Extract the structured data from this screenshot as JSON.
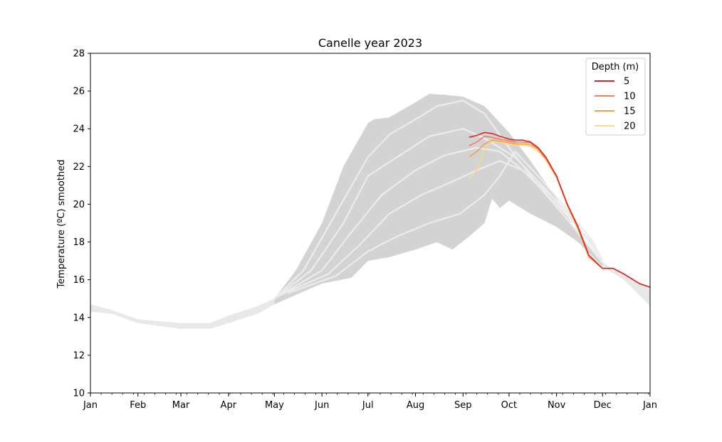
{
  "chart_data": {
    "type": "line",
    "title": "Canelle year 2023",
    "xlabel": "",
    "ylabel": "Temperature (ºC) smoothed",
    "ylim": [
      10,
      28
    ],
    "yticks": [
      10,
      12,
      14,
      16,
      18,
      20,
      22,
      24,
      26,
      28
    ],
    "xlim": [
      "2023-01-01",
      "2024-01-01"
    ],
    "xtick_labels": [
      "Jan",
      "Feb",
      "Mar",
      "Apr",
      "May",
      "Jun",
      "Jul",
      "Aug",
      "Sep",
      "Oct",
      "Nov",
      "Dec",
      "Jan"
    ],
    "xtick_dates": [
      "2023-01-01",
      "2023-02-01",
      "2023-03-01",
      "2023-04-01",
      "2023-05-01",
      "2023-06-01",
      "2023-07-01",
      "2023-08-01",
      "2023-09-01",
      "2023-10-01",
      "2023-11-01",
      "2023-12-01",
      "2024-01-01"
    ],
    "legend": {
      "title": "Depth (m)",
      "placement": "top-right"
    },
    "colors": {
      "band_outer": "#e8e8e8",
      "band_inner": "#d3d3d3",
      "historical_line": "#ececec"
    },
    "background_band": {
      "description_outer": "historical min/max envelope",
      "outer_upper": [
        [
          "2023-01-01",
          14.7
        ],
        [
          "2023-01-15",
          14.4
        ],
        [
          "2023-02-01",
          13.9
        ],
        [
          "2023-03-01",
          13.7
        ],
        [
          "2023-03-20",
          13.7
        ],
        [
          "2023-04-01",
          14.1
        ],
        [
          "2023-04-20",
          14.6
        ],
        [
          "2023-05-01",
          15.0
        ],
        [
          "2023-05-15",
          16.5
        ],
        [
          "2023-06-01",
          19.0
        ],
        [
          "2023-06-15",
          22.0
        ],
        [
          "2023-07-01",
          24.3
        ],
        [
          "2023-07-05",
          24.5
        ],
        [
          "2023-07-15",
          24.6
        ],
        [
          "2023-08-01",
          25.4
        ],
        [
          "2023-08-10",
          25.85
        ],
        [
          "2023-08-20",
          25.8
        ],
        [
          "2023-09-01",
          25.7
        ],
        [
          "2023-09-15",
          25.2
        ],
        [
          "2023-10-01",
          23.8
        ],
        [
          "2023-10-15",
          22.3
        ],
        [
          "2023-11-01",
          20.3
        ],
        [
          "2023-11-15",
          18.4
        ],
        [
          "2023-12-01",
          16.9
        ],
        [
          "2023-12-15",
          16.3
        ],
        [
          "2024-01-01",
          15.5
        ]
      ],
      "outer_lower": [
        [
          "2023-01-01",
          14.3
        ],
        [
          "2023-01-15",
          14.2
        ],
        [
          "2023-02-01",
          13.7
        ],
        [
          "2023-03-01",
          13.4
        ],
        [
          "2023-03-20",
          13.4
        ],
        [
          "2023-04-01",
          13.7
        ],
        [
          "2023-04-20",
          14.2
        ],
        [
          "2023-05-01",
          14.7
        ],
        [
          "2023-05-15",
          15.2
        ],
        [
          "2023-06-01",
          15.8
        ],
        [
          "2023-06-20",
          16.1
        ],
        [
          "2023-07-01",
          17.0
        ],
        [
          "2023-07-15",
          17.2
        ],
        [
          "2023-08-01",
          17.6
        ],
        [
          "2023-08-15",
          18.0
        ],
        [
          "2023-08-25",
          17.6
        ],
        [
          "2023-09-05",
          18.3
        ],
        [
          "2023-09-15",
          19.0
        ],
        [
          "2023-09-20",
          20.3
        ],
        [
          "2023-09-25",
          19.8
        ],
        [
          "2023-10-01",
          20.2
        ],
        [
          "2023-10-15",
          19.5
        ],
        [
          "2023-11-01",
          18.8
        ],
        [
          "2023-11-15",
          18.0
        ],
        [
          "2023-12-01",
          16.7
        ],
        [
          "2023-12-15",
          16.0
        ],
        [
          "2024-01-01",
          14.6
        ]
      ]
    },
    "historical_lines": [
      [
        [
          "2023-05-01",
          15.0
        ],
        [
          "2023-05-20",
          16.5
        ],
        [
          "2023-06-10",
          19.5
        ],
        [
          "2023-07-01",
          22.5
        ],
        [
          "2023-07-15",
          23.7
        ],
        [
          "2023-08-01",
          24.5
        ],
        [
          "2023-08-15",
          25.2
        ],
        [
          "2023-09-01",
          25.5
        ],
        [
          "2023-09-15",
          24.8
        ],
        [
          "2023-10-01",
          23.0
        ],
        [
          "2023-10-20",
          21.0
        ],
        [
          "2023-11-10",
          19.0
        ],
        [
          "2023-12-01",
          16.9
        ]
      ],
      [
        [
          "2023-05-01",
          15.0
        ],
        [
          "2023-05-25",
          16.5
        ],
        [
          "2023-06-15",
          19.0
        ],
        [
          "2023-07-01",
          21.5
        ],
        [
          "2023-07-20",
          22.5
        ],
        [
          "2023-08-10",
          23.6
        ],
        [
          "2023-09-01",
          24.0
        ],
        [
          "2023-09-15",
          23.5
        ],
        [
          "2023-10-05",
          22.5
        ],
        [
          "2023-10-25",
          20.8
        ],
        [
          "2023-11-15",
          18.8
        ],
        [
          "2023-12-01",
          17.0
        ]
      ],
      [
        [
          "2023-05-01",
          15.0
        ],
        [
          "2023-06-01",
          16.5
        ],
        [
          "2023-06-20",
          18.5
        ],
        [
          "2023-07-10",
          20.5
        ],
        [
          "2023-08-01",
          21.8
        ],
        [
          "2023-08-20",
          22.6
        ],
        [
          "2023-09-10",
          23.0
        ],
        [
          "2023-09-25",
          22.8
        ],
        [
          "2023-10-10",
          21.8
        ],
        [
          "2023-11-01",
          20.0
        ],
        [
          "2023-11-20",
          18.3
        ],
        [
          "2023-12-01",
          17.0
        ]
      ],
      [
        [
          "2023-05-05",
          15.2
        ],
        [
          "2023-06-05",
          16.3
        ],
        [
          "2023-06-25",
          17.8
        ],
        [
          "2023-07-15",
          19.5
        ],
        [
          "2023-08-05",
          20.5
        ],
        [
          "2023-08-25",
          21.2
        ],
        [
          "2023-09-10",
          21.8
        ],
        [
          "2023-09-25",
          22.3
        ],
        [
          "2023-10-10",
          21.8
        ],
        [
          "2023-11-01",
          20.2
        ],
        [
          "2023-11-20",
          18.5
        ],
        [
          "2023-12-01",
          17.0
        ]
      ],
      [
        [
          "2023-05-10",
          15.3
        ],
        [
          "2023-06-10",
          16.2
        ],
        [
          "2023-07-01",
          17.5
        ],
        [
          "2023-07-20",
          18.3
        ],
        [
          "2023-08-10",
          19.0
        ],
        [
          "2023-08-30",
          19.5
        ],
        [
          "2023-09-15",
          20.5
        ],
        [
          "2023-09-25",
          21.5
        ],
        [
          "2023-10-05",
          22.8
        ],
        [
          "2023-10-20",
          21.5
        ],
        [
          "2023-11-05",
          20.0
        ],
        [
          "2023-11-25",
          18.0
        ],
        [
          "2023-12-01",
          17.0
        ]
      ]
    ],
    "series": [
      {
        "name": "5",
        "color": "#d62728",
        "x": [
          "2023-09-05",
          "2023-09-10",
          "2023-09-15",
          "2023-09-20",
          "2023-09-25",
          "2023-10-01",
          "2023-10-05",
          "2023-10-10",
          "2023-10-15",
          "2023-10-20",
          "2023-10-25",
          "2023-11-01",
          "2023-11-08",
          "2023-11-15",
          "2023-11-22",
          "2023-12-01",
          "2023-12-08",
          "2023-12-15",
          "2023-12-25",
          "2024-01-01"
        ],
        "y": [
          23.55,
          23.65,
          23.8,
          23.75,
          23.6,
          23.45,
          23.4,
          23.4,
          23.3,
          23.0,
          22.5,
          21.5,
          20.0,
          18.8,
          17.3,
          16.6,
          16.6,
          16.3,
          15.8,
          15.6
        ]
      },
      {
        "name": "10",
        "color": "#f08060",
        "x": [
          "2023-09-05",
          "2023-09-10",
          "2023-09-15",
          "2023-09-20",
          "2023-09-25",
          "2023-10-01",
          "2023-10-05",
          "2023-10-10",
          "2023-10-15",
          "2023-10-20",
          "2023-10-25",
          "2023-11-01",
          "2023-11-08",
          "2023-11-15",
          "2023-11-22",
          "2023-12-01",
          "2023-12-08",
          "2023-12-15",
          "2023-12-25",
          "2024-01-01"
        ],
        "y": [
          23.1,
          23.3,
          23.6,
          23.55,
          23.45,
          23.35,
          23.3,
          23.3,
          23.25,
          22.95,
          22.45,
          21.5,
          20.0,
          18.8,
          17.3,
          16.6,
          16.6,
          16.3,
          15.8,
          15.6
        ]
      },
      {
        "name": "15",
        "color": "#f8a040",
        "x": [
          "2023-09-05",
          "2023-09-10",
          "2023-09-15",
          "2023-09-20",
          "2023-09-25",
          "2023-10-01",
          "2023-10-05",
          "2023-10-10",
          "2023-10-15",
          "2023-10-20",
          "2023-10-25",
          "2023-11-01",
          "2023-11-08",
          "2023-11-15",
          "2023-11-22",
          "2023-12-01",
          "2023-12-08",
          "2023-12-15",
          "2023-12-25",
          "2024-01-01"
        ],
        "y": [
          22.5,
          22.8,
          23.2,
          23.4,
          23.35,
          23.25,
          23.2,
          23.2,
          23.15,
          22.9,
          22.4,
          21.45,
          20.0,
          18.7,
          17.2,
          16.6,
          16.6,
          16.3,
          15.8,
          15.6
        ]
      },
      {
        "name": "20",
        "color": "#fdd98a",
        "x": [
          "2023-09-05",
          "2023-09-10",
          "2023-09-15",
          "2023-09-20",
          "2023-09-25",
          "2023-10-01",
          "2023-10-05",
          "2023-10-10",
          "2023-10-15",
          "2023-10-20",
          "2023-10-25",
          "2023-11-01",
          "2023-11-08",
          "2023-11-15",
          "2023-11-22",
          "2023-12-01",
          "2023-12-08",
          "2023-12-15",
          "2023-12-25",
          "2024-01-01"
        ],
        "y": [
          21.4,
          21.8,
          22.9,
          23.35,
          23.3,
          23.2,
          23.15,
          23.15,
          23.05,
          22.8,
          22.35,
          21.4,
          19.9,
          18.7,
          17.2,
          16.6,
          16.6,
          16.3,
          15.8,
          15.6
        ]
      }
    ],
    "grid": false
  }
}
